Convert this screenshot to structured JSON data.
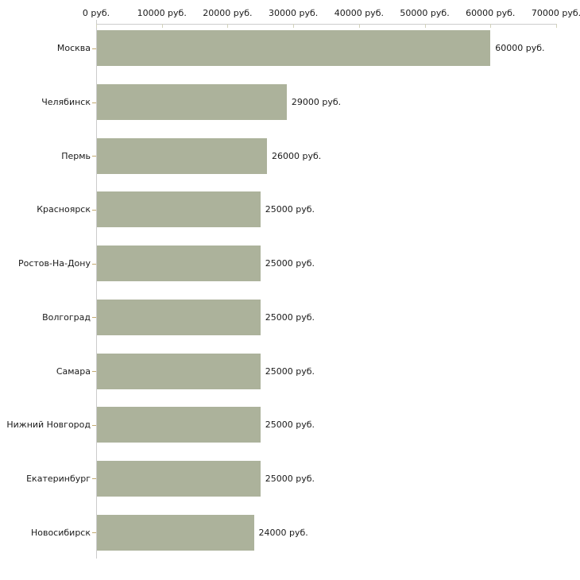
{
  "chart_data": {
    "type": "bar",
    "orientation": "horizontal",
    "title": "",
    "xlabel": "",
    "ylabel": "",
    "xlim": [
      0,
      70000
    ],
    "grid": false,
    "legend": false,
    "x_tick_values": [
      0,
      10000,
      20000,
      30000,
      40000,
      50000,
      60000,
      70000
    ],
    "x_tick_labels": [
      "0 руб.",
      "10000 руб.",
      "20000 руб.",
      "30000 руб.",
      "40000 руб.",
      "50000 руб.",
      "60000 руб.",
      "70000 руб."
    ],
    "categories": [
      "Москва",
      "Челябинск",
      "Пермь",
      "Красноярск",
      "Ростов-На-Дону",
      "Волгоград",
      "Самара",
      "Нижний Новгород",
      "Екатеринбург",
      "Новосибирск"
    ],
    "values": [
      60000,
      29000,
      26000,
      25000,
      25000,
      25000,
      25000,
      25000,
      25000,
      24000
    ],
    "value_labels": [
      "60000 руб.",
      "29000 руб.",
      "26000 руб.",
      "25000 руб.",
      "25000 руб.",
      "25000 руб.",
      "25000 руб.",
      "25000 руб.",
      "25000 руб.",
      "24000 руб."
    ]
  },
  "colors": {
    "bar": "#acb29b",
    "axis": "#cccccc",
    "x_tick": "#d2d2bc",
    "y_tick": "#c3aa70",
    "text": "#1a1a1a",
    "background": "#ffffff"
  }
}
